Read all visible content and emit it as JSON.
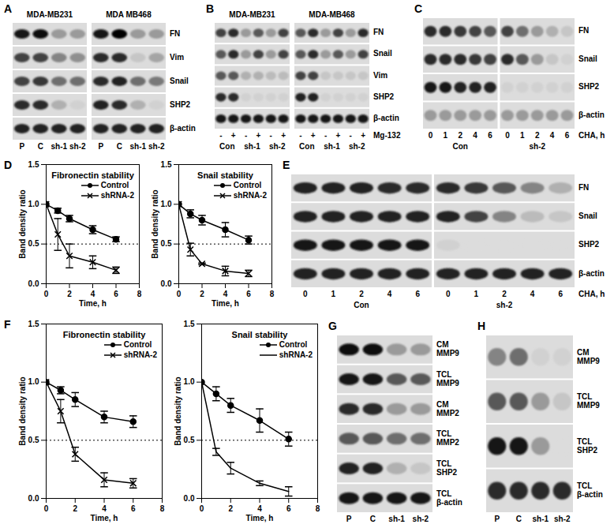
{
  "blots": [
    {
      "panel": "A",
      "title_position": "top",
      "groups": [
        {
          "title": "MDA-MB231",
          "lanes": [
            "P",
            "C",
            "sh-1",
            "sh-2"
          ]
        },
        {
          "title": "MDA MB468",
          "lanes": [
            "P",
            "C",
            "sh-1",
            "sh-2"
          ]
        }
      ],
      "rows": [
        {
          "name": "FN",
          "bands": [
            0.9,
            0.95,
            0.3,
            0.3,
            0.9,
            1,
            0.3,
            0.3
          ]
        },
        {
          "name": "Vim",
          "bands": [
            0.7,
            0.7,
            0.4,
            0.35,
            0.8,
            0.8,
            0.1,
            0.25
          ]
        },
        {
          "name": "Snail",
          "bands": [
            0.7,
            0.75,
            0.5,
            0.5,
            0.8,
            0.85,
            0.5,
            0.45
          ]
        },
        {
          "name": "SHP2",
          "bands": [
            0.8,
            0.8,
            0.2,
            0.05,
            0.85,
            0.8,
            0.2,
            0.05
          ]
        },
        {
          "name": "β-actin",
          "bands": [
            0.85,
            0.85,
            0.85,
            0.85,
            0.85,
            0.85,
            0.85,
            0.85
          ]
        }
      ]
    },
    {
      "panel": "B",
      "title_position": "top",
      "lane_axis_label": "Mg-132",
      "groups": [
        {
          "title": "MDA-MB231",
          "lanes": [
            "-",
            "+",
            "-",
            "+",
            "-",
            "+"
          ],
          "subgroups": [
            "Con",
            "sh-1",
            "sh-2"
          ]
        },
        {
          "title": "MDA-MB468",
          "lanes": [
            "-",
            "+",
            "-",
            "+",
            "-",
            "+"
          ],
          "subgroups": [
            "Con",
            "sh-1",
            "sh-2"
          ]
        }
      ],
      "rows": [
        {
          "name": "FN",
          "bands": [
            0.7,
            0.8,
            0.3,
            0.6,
            0.3,
            0.7,
            0.6,
            0.8,
            0.3,
            0.7,
            0.3,
            0.8
          ]
        },
        {
          "name": "Snail",
          "bands": [
            0.6,
            0.8,
            0.3,
            0.7,
            0.3,
            0.7,
            0.6,
            0.8,
            0.3,
            0.6,
            0.3,
            0.7
          ]
        },
        {
          "name": "Vim",
          "bands": [
            0.6,
            0.6,
            0.2,
            0.2,
            0.15,
            0.15,
            0.7,
            0.7,
            0.1,
            0.1,
            0.1,
            0.1
          ]
        },
        {
          "name": "SHP2",
          "bands": [
            0.8,
            0.8,
            0.05,
            0.05,
            0.05,
            0.05,
            0.85,
            0.85,
            0.05,
            0.05,
            0.05,
            0.05
          ]
        },
        {
          "name": "β-actin",
          "bands": [
            0.9,
            0.9,
            0.9,
            0.9,
            0.9,
            0.9,
            0.9,
            0.9,
            0.9,
            0.9,
            0.9,
            0.9
          ]
        }
      ]
    },
    {
      "panel": "C",
      "title_position": "bottom",
      "lane_axis_label": "CHA, h",
      "groups": [
        {
          "title": "Con",
          "lanes": [
            "0",
            "1",
            "2",
            "4",
            "6"
          ]
        },
        {
          "title": "sh-2",
          "lanes": [
            "0",
            "1",
            "2",
            "4",
            "6"
          ]
        }
      ],
      "rows": [
        {
          "name": "FN",
          "bands": [
            0.8,
            0.8,
            0.75,
            0.7,
            0.6,
            0.7,
            0.5,
            0.3,
            0.2,
            0.1
          ]
        },
        {
          "name": "Snail",
          "bands": [
            0.8,
            0.8,
            0.8,
            0.75,
            0.7,
            0.8,
            0.6,
            0.3,
            0.1,
            0.05
          ]
        },
        {
          "name": "SHP2",
          "bands": [
            0.9,
            0.9,
            0.85,
            0.85,
            0.85,
            0.05,
            0.05,
            0.05,
            0.05,
            0.05
          ]
        },
        {
          "name": "β-actin",
          "bands": [
            0.3,
            0.3,
            0.3,
            0.3,
            0.3,
            0.3,
            0.3,
            0.3,
            0.3,
            0.3
          ]
        }
      ]
    },
    {
      "panel": "E",
      "title_position": "bottom",
      "lane_axis_label": "CHA, h",
      "groups": [
        {
          "title": "Con",
          "lanes": [
            "0",
            "1",
            "2",
            "4",
            "6"
          ]
        },
        {
          "title": "sh-2",
          "lanes": [
            "0",
            "1",
            "2",
            "4",
            "6"
          ]
        }
      ],
      "rows": [
        {
          "name": "FN",
          "bands": [
            0.85,
            0.85,
            0.85,
            0.8,
            0.8,
            0.8,
            0.75,
            0.6,
            0.4,
            0.2
          ]
        },
        {
          "name": "Snail",
          "bands": [
            0.85,
            0.85,
            0.85,
            0.85,
            0.85,
            0.85,
            0.7,
            0.4,
            0.15,
            0.1
          ]
        },
        {
          "name": "SHP2",
          "bands": [
            0.9,
            0.9,
            0.9,
            0.9,
            0.9,
            0.05,
            0,
            0,
            0,
            0
          ]
        },
        {
          "name": "β-actin",
          "bands": [
            0.85,
            0.85,
            0.85,
            0.85,
            0.85,
            0.85,
            0.85,
            0.85,
            0.85,
            0.85
          ]
        }
      ]
    },
    {
      "panel": "G",
      "groups": [
        {
          "lanes": [
            "P",
            "C",
            "sh-1",
            "sh-2"
          ]
        }
      ],
      "rows": [
        {
          "name": "CM MMP9",
          "bands": [
            0.95,
            0.95,
            0.3,
            0.3
          ]
        },
        {
          "name": "TCL MMP9",
          "bands": [
            0.9,
            0.9,
            0.6,
            0.6
          ]
        },
        {
          "name": "CM MMP2",
          "bands": [
            0.8,
            0.8,
            0.3,
            0.3
          ]
        },
        {
          "name": "TCL MMP2",
          "bands": [
            0.6,
            0.6,
            0.5,
            0.5
          ]
        },
        {
          "name": "TCL SHP2",
          "bands": [
            0.85,
            0.85,
            0.2,
            0.1
          ]
        },
        {
          "name": "TCL β-actin",
          "bands": [
            0.9,
            0.9,
            0.9,
            0.9
          ]
        }
      ]
    },
    {
      "panel": "H",
      "groups": [
        {
          "lanes": [
            "P",
            "C",
            "sh-1",
            "sh-2"
          ]
        }
      ],
      "rows": [
        {
          "name": "CM MMP9",
          "bands": [
            0.4,
            0.5,
            0.05,
            0.05
          ]
        },
        {
          "name": "TCL MMP9",
          "bands": [
            0.6,
            0.6,
            0.3,
            0.1
          ]
        },
        {
          "name": "TCL SHP2",
          "bands": [
            0.9,
            0.9,
            0.3,
            0
          ]
        },
        {
          "name": "TCL β-actin",
          "bands": [
            0.8,
            0.8,
            0.8,
            0.8
          ]
        }
      ]
    }
  ],
  "chart_data": [
    {
      "panel": "D",
      "type": "line",
      "title": "Fibronectin stability",
      "x_label": "Time, h",
      "y_label": "Band density ratio",
      "x": [
        0,
        1,
        2,
        4,
        6
      ],
      "xlim": [
        0,
        8
      ],
      "xticks": [
        0,
        2,
        4,
        6,
        8
      ],
      "ylim": [
        0,
        1.5
      ],
      "yticks": [
        {
          "value": 0,
          "label": "0.0"
        },
        0.5,
        {
          "value": 1,
          "label": "1.0"
        },
        1.5
      ],
      "hline": 0.5,
      "legend": "top-right",
      "series": [
        {
          "name": "Control",
          "color": "#000000",
          "marker": "circle",
          "values": [
            1.0,
            0.92,
            0.82,
            0.68,
            0.56
          ],
          "errors": [
            0,
            0.03,
            0.04,
            0.05,
            0.03
          ]
        },
        {
          "name": "shRNA-2",
          "color": "#000000",
          "marker": "times",
          "values": [
            1.0,
            0.62,
            0.35,
            0.27,
            0.17
          ],
          "errors": [
            0,
            0.2,
            0.15,
            0.08,
            0.04
          ]
        }
      ]
    },
    {
      "panel": "D",
      "type": "line",
      "title": "Snail stability",
      "x_label": "Time, h",
      "y_label": "Band density ratio",
      "x": [
        0,
        1,
        2,
        4,
        6
      ],
      "xlim": [
        0,
        8
      ],
      "xticks": [
        0,
        2,
        4,
        6,
        8
      ],
      "ylim": [
        0,
        1.5
      ],
      "yticks": [
        {
          "value": 0,
          "label": "0.0"
        },
        0.5,
        {
          "value": 1,
          "label": "1.0"
        },
        1.5
      ],
      "hline": 0.5,
      "legend": "top-right",
      "series": [
        {
          "name": "Control",
          "color": "#000000",
          "marker": "circle",
          "values": [
            1.0,
            0.88,
            0.8,
            0.68,
            0.55
          ],
          "errors": [
            0,
            0.05,
            0.06,
            0.09,
            0.05
          ]
        },
        {
          "name": "shRNA-2",
          "color": "#000000",
          "marker": "times",
          "values": [
            1.0,
            0.43,
            0.25,
            0.16,
            0.13
          ],
          "errors": [
            0,
            0.08,
            0.01,
            0.06,
            0.04
          ]
        }
      ]
    },
    {
      "panel": "F",
      "type": "line",
      "title": "Fibronectin stability",
      "x_label": "Time, h",
      "y_label": "Band density ratio",
      "x": [
        0,
        1,
        2,
        4,
        6
      ],
      "xlim": [
        0,
        8
      ],
      "xticks": [
        0,
        2,
        4,
        6,
        8
      ],
      "ylim": [
        0,
        1.5
      ],
      "yticks": [
        {
          "value": 0,
          "label": "0.0"
        },
        0.5,
        {
          "value": 1,
          "label": "1.0"
        },
        1.5
      ],
      "hline": 0.5,
      "legend": "top-right",
      "series": [
        {
          "name": "Control",
          "color": "#000000",
          "marker": "circle",
          "values": [
            1.0,
            0.93,
            0.85,
            0.7,
            0.66
          ],
          "errors": [
            0,
            0.03,
            0.06,
            0.05,
            0.05
          ]
        },
        {
          "name": "shRNA-2",
          "color": "#000000",
          "marker": "times",
          "values": [
            1.0,
            0.75,
            0.38,
            0.16,
            0.13
          ],
          "errors": [
            0,
            0.1,
            0.06,
            0.06,
            0.04
          ]
        }
      ]
    },
    {
      "panel": "F",
      "type": "line",
      "title": "Snail stability",
      "x_label": "Time, h",
      "y_label": "Band density ratio",
      "x": [
        0,
        1,
        2,
        4,
        6
      ],
      "xlim": [
        0,
        8
      ],
      "xticks": [
        0,
        2,
        4,
        6,
        8
      ],
      "ylim": [
        0,
        1.5
      ],
      "yticks": [
        {
          "value": 0,
          "label": "0.0"
        },
        0.5,
        {
          "value": 1,
          "label": "1.0"
        },
        1.5
      ],
      "hline": 0.5,
      "legend": "top-right",
      "series": [
        {
          "name": "Control",
          "color": "#000000",
          "marker": "circle",
          "values": [
            1.0,
            0.9,
            0.8,
            0.67,
            0.51
          ],
          "errors": [
            0,
            0.06,
            0.06,
            0.1,
            0.06
          ]
        },
        {
          "name": "shRNA-2",
          "color": "#000000",
          "marker": "none",
          "values": [
            1.0,
            0.4,
            0.26,
            0.13,
            0.06
          ],
          "errors": [
            0,
            0.03,
            0.05,
            0.02,
            0.04
          ]
        }
      ]
    }
  ]
}
